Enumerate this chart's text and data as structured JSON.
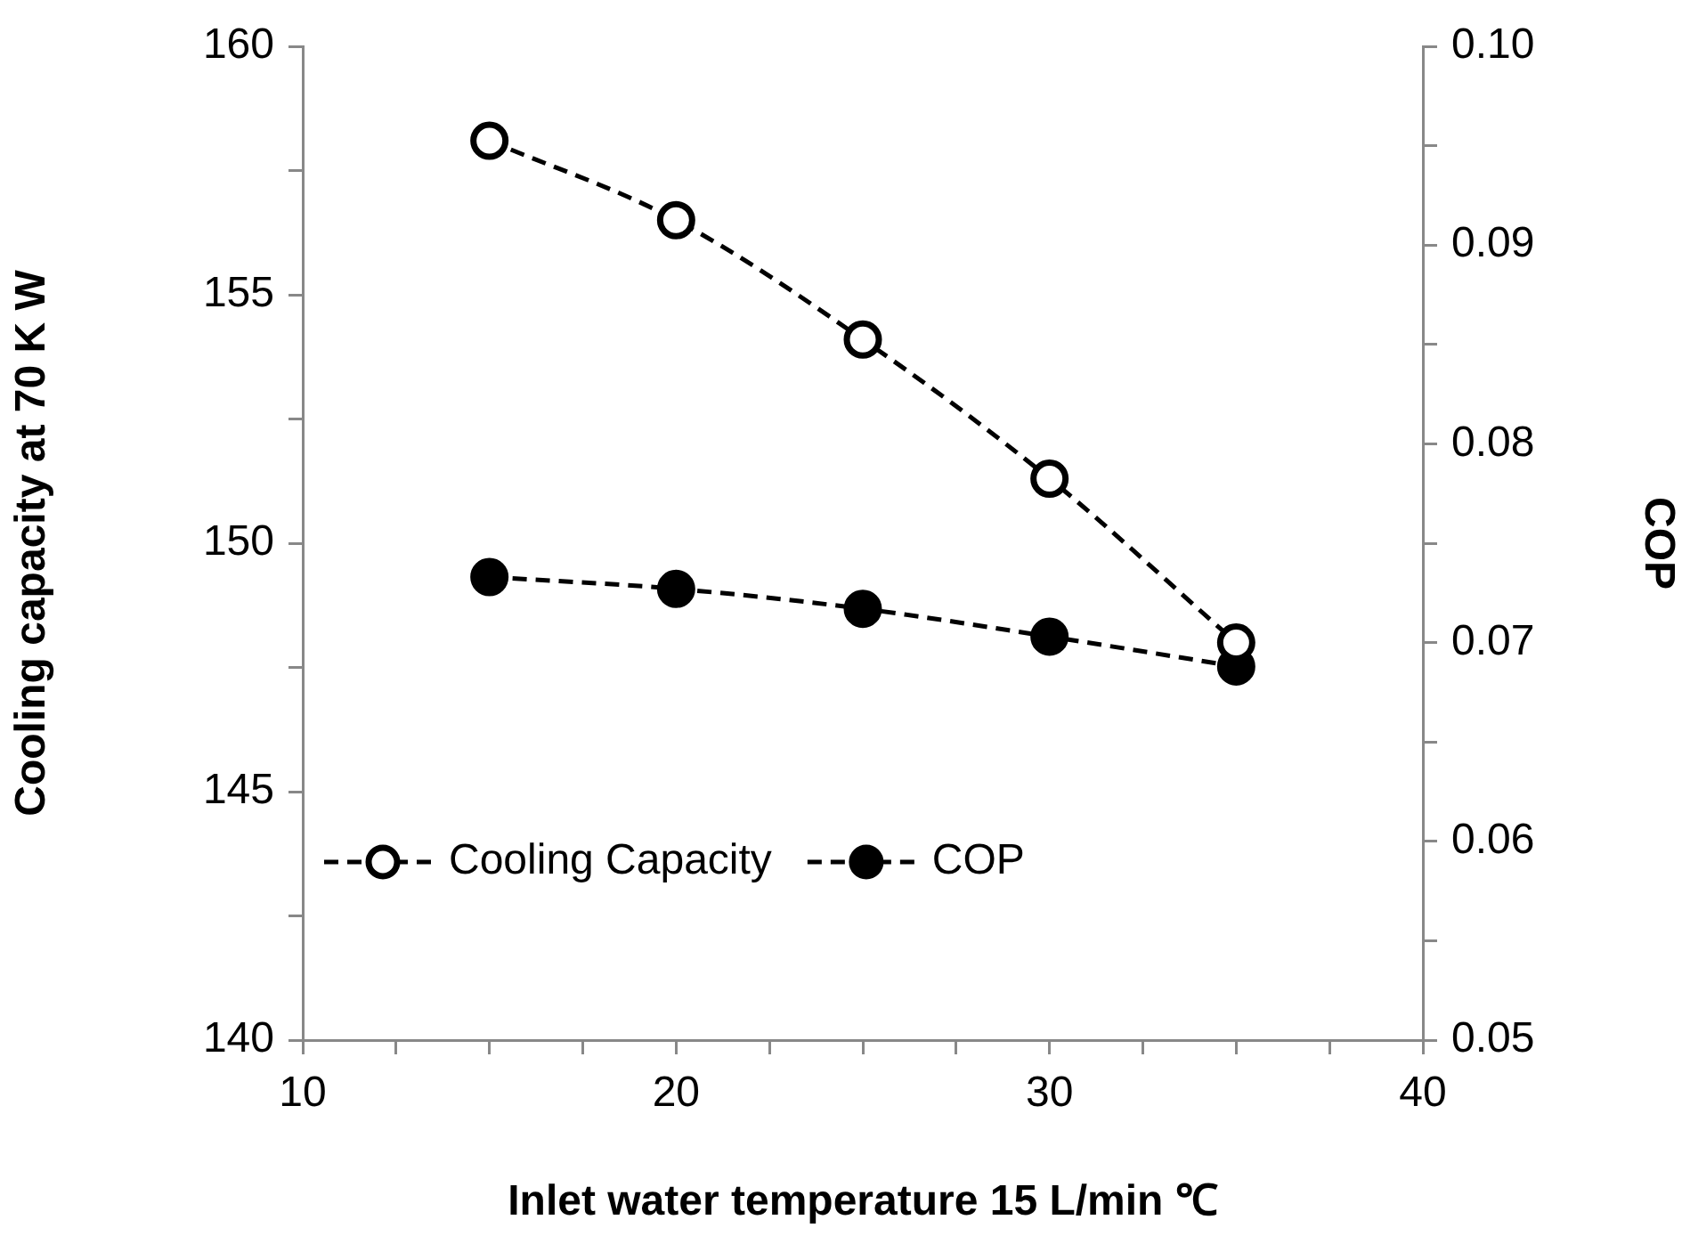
{
  "chart_data": {
    "type": "line",
    "xlabel": "Inlet water temperature 15 L/min ℃",
    "ylabel": "Cooling capacity at 70 K W",
    "y2label": "COP",
    "x": [
      15,
      20,
      25,
      30,
      35
    ],
    "series": [
      {
        "name": "Cooling Capacity",
        "color": "#000000",
        "values": [
          158.1,
          156.5,
          154.1,
          151.3,
          148.0
        ]
      },
      {
        "name": "COP",
        "color": "#000000",
        "axis": "y2",
        "values": [
          0.0733,
          0.0727,
          0.0717,
          0.0703,
          0.0688
        ]
      }
    ],
    "xlim": [
      10,
      40
    ],
    "xticks": [
      10,
      {
        "value": 12.5,
        "label": null
      },
      20,
      {
        "value": 22.5,
        "label": null
      },
      {
        "value": 17.5,
        "label": null
      },
      {
        "value": 15,
        "label": null
      },
      {
        "value": 25,
        "label": null
      },
      {
        "value": 27.5,
        "label": null
      },
      30,
      {
        "value": 32.5,
        "label": null
      },
      {
        "value": 35,
        "label": null
      },
      {
        "value": 37.5,
        "label": null
      },
      40
    ],
    "ylim": [
      140,
      160
    ],
    "yticks": [
      140,
      {
        "value": 142.5,
        "label": null
      },
      145,
      {
        "value": 147.5,
        "label": null
      },
      150,
      {
        "value": 152.5,
        "label": null
      },
      155,
      {
        "value": 157.5,
        "label": null
      },
      160
    ],
    "y2lim": [
      0.05,
      0.1
    ],
    "y2ticks": [
      {
        "value": 0.05,
        "label": "0.05"
      },
      {
        "value": 0.055,
        "label": null
      },
      {
        "value": 0.06,
        "label": "0.06"
      },
      {
        "value": 0.065,
        "label": null
      },
      {
        "value": 0.07,
        "label": "0.07"
      },
      {
        "value": 0.075,
        "label": null
      },
      {
        "value": 0.08,
        "label": "0.08"
      },
      {
        "value": 0.085,
        "label": null
      },
      {
        "value": 0.09,
        "label": "0.09"
      },
      {
        "value": 0.095,
        "label": null
      },
      {
        "value": 0.1,
        "label": "0.10"
      }
    ],
    "grid": false,
    "legend": "bottom left",
    "marker": "circle",
    "line_style": "dashed"
  }
}
